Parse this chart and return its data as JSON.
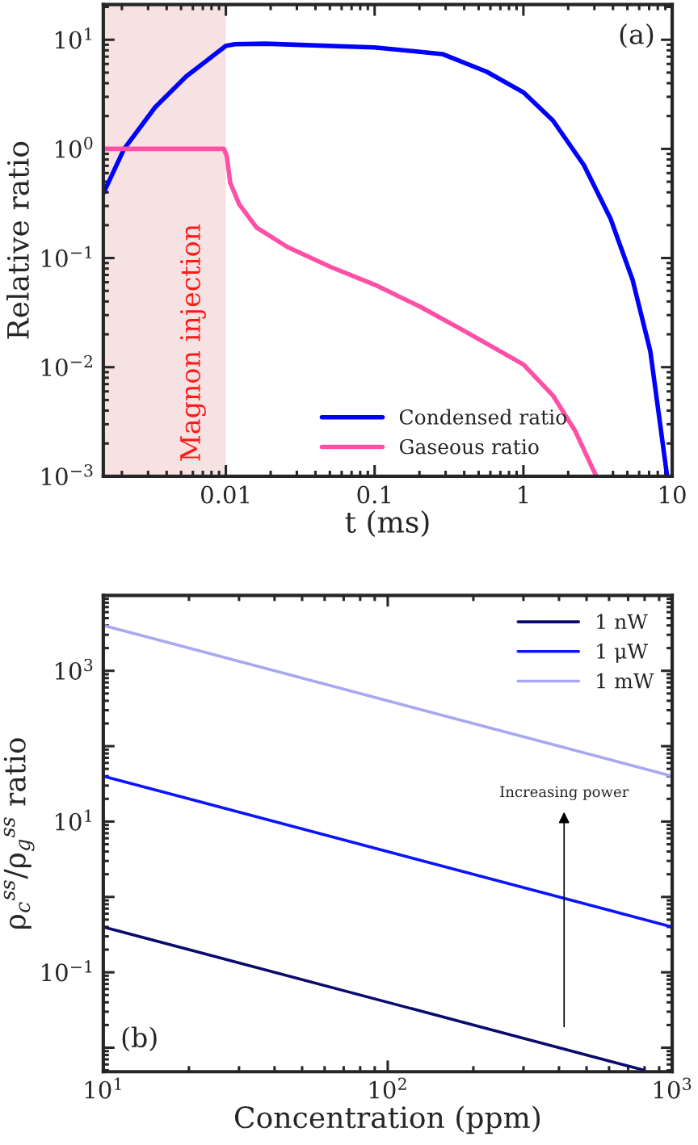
{
  "chart_data": [
    {
      "type": "line",
      "xlabel": "t (ms)",
      "ylabel": "Relative ratio",
      "log": "xy",
      "legend": "bottom",
      "grid": false,
      "xlim": [
        0.0015,
        10
      ],
      "ylim": [
        0.001,
        21
      ],
      "xticks": [
        0.01,
        0.1,
        1,
        10
      ],
      "yticks": [
        {
          "value": 0.001,
          "label": "10$^{−3}$"
        },
        {
          "value": 0.01,
          "label": "10$^{−2}$"
        },
        {
          "value": 0.1,
          "label": "10$^{−1}$"
        },
        {
          "value": 1,
          "label": "10$^{0}$"
        },
        {
          "value": 10,
          "label": "10$^{1}$"
        }
      ],
      "bands": [
        {
          "axis": "x",
          "from": 0.0015,
          "to": 0.01,
          "label": "Magnon injection",
          "color": "#f6e2e2"
        }
      ],
      "annotations": [
        "(a)"
      ],
      "series": [
        {
          "name": "Condensed ratio",
          "color": "#0000ff",
          "x": [
            0.0015,
            0.00207,
            0.00334,
            0.0054,
            0.01,
            0.0115,
            0.0185,
            0.1,
            0.285,
            0.565,
            1,
            1.58,
            2.55,
            3.85,
            5.42,
            7.13,
            9.25
          ],
          "values": [
            0.39,
            1.0,
            2.4,
            4.6,
            8.8,
            9.1,
            9.2,
            8.5,
            7.4,
            5.1,
            3.3,
            1.82,
            0.71,
            0.23,
            0.063,
            0.014,
            0.001
          ]
        },
        {
          "name": "Gaseous ratio",
          "color": "#ff4fa7",
          "x": [
            0.0015,
            0.0097,
            0.01014,
            0.0107,
            0.0123,
            0.0161,
            0.026,
            0.0505,
            0.1,
            0.203,
            0.403,
            1,
            1.58,
            2.23,
            3.09
          ],
          "values": [
            1.0,
            1.0,
            0.86,
            0.49,
            0.31,
            0.19,
            0.126,
            0.083,
            0.057,
            0.0357,
            0.0214,
            0.0106,
            0.0055,
            0.0026,
            0.001
          ]
        }
      ]
    },
    {
      "type": "line",
      "xlabel": "Concentration (ppm)",
      "ylabel": "ρ$_{c}$$^{ss}$/ρ$_{g}$$^{ss}$ ratio",
      "log": "xy",
      "legend": "top right",
      "grid": false,
      "xlim": [
        10,
        1000
      ],
      "ylim": [
        0.0048,
        10000
      ],
      "xticks": [
        {
          "value": 10,
          "label": "10$^{1}$"
        },
        {
          "value": 100,
          "label": "10$^{2}$"
        },
        {
          "value": 1000,
          "label": "10$^{3}$"
        }
      ],
      "yticks": [
        {
          "value": 0.01,
          "label": null
        },
        {
          "value": 0.1,
          "label": "10$^{−1}$"
        },
        {
          "value": 1,
          "label": null
        },
        {
          "value": 10,
          "label": "10$^{1}$"
        },
        {
          "value": 100,
          "label": null
        },
        {
          "value": 1000,
          "label": "10$^{3}$"
        }
      ],
      "annotations": [
        "(b)",
        "Increasing power"
      ],
      "series": [
        {
          "name": "1 nW",
          "color": "#0a0a6e",
          "x": [
            10,
            800
          ],
          "values": [
            0.4,
            0.005
          ]
        },
        {
          "name": "1 μW",
          "color": "#0a14ff",
          "x": [
            10,
            1000
          ],
          "values": [
            40,
            0.4
          ]
        },
        {
          "name": "1 mW",
          "color": "#a8a8f2",
          "x": [
            10,
            1000
          ],
          "values": [
            4000,
            40
          ]
        }
      ]
    }
  ]
}
